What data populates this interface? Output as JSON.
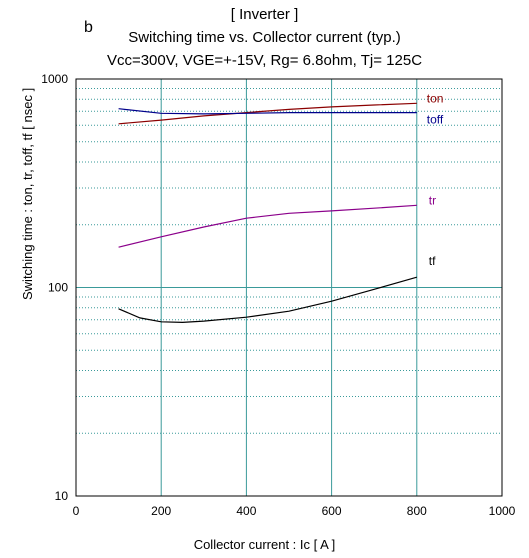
{
  "panel_letter": "b",
  "chart_data": {
    "type": "line",
    "title": "[ Inverter ]",
    "subtitle": "Switching time  vs.  Collector current  (typ.)",
    "conditions": "Vcc=300V, VGE=+-15V, Rg= 6.8ohm, Tj= 125C",
    "xlabel": "Collector current  :  Ic  [ A ]",
    "ylabel": "Switching time  :  ton, tr, toff, tf  [ nsec ]",
    "xlim": [
      0,
      1000
    ],
    "ylim": [
      10,
      1000
    ],
    "yscale": "log",
    "xticks": [
      0,
      200,
      400,
      600,
      800,
      1000
    ],
    "xtick_labels": [
      "0",
      "200",
      "400",
      "600",
      "800",
      "1000"
    ],
    "yticks": [
      10,
      100,
      1000
    ],
    "ytick_labels": [
      "10",
      "100",
      "1000"
    ],
    "grid": true,
    "series": [
      {
        "name": "ton",
        "color": "#8b0000",
        "x": [
          100,
          200,
          300,
          400,
          500,
          600,
          700,
          800
        ],
        "y": [
          610,
          635,
          665,
          690,
          715,
          735,
          750,
          765
        ]
      },
      {
        "name": "toff",
        "color": "#00008b",
        "x": [
          100,
          200,
          300,
          400,
          500,
          600,
          700,
          800
        ],
        "y": [
          720,
          685,
          680,
          685,
          690,
          690,
          690,
          690
        ]
      },
      {
        "name": "tr",
        "color": "#8b008b",
        "x": [
          100,
          200,
          300,
          400,
          500,
          600,
          700,
          800
        ],
        "y": [
          156,
          175,
          195,
          215,
          227,
          233,
          240,
          248
        ]
      },
      {
        "name": "tf",
        "color": "#000000",
        "x": [
          100,
          150,
          200,
          250,
          300,
          400,
          500,
          600,
          700,
          800
        ],
        "y": [
          79,
          71.5,
          68.5,
          68,
          69,
          72,
          77,
          86,
          98,
          112
        ]
      }
    ]
  }
}
